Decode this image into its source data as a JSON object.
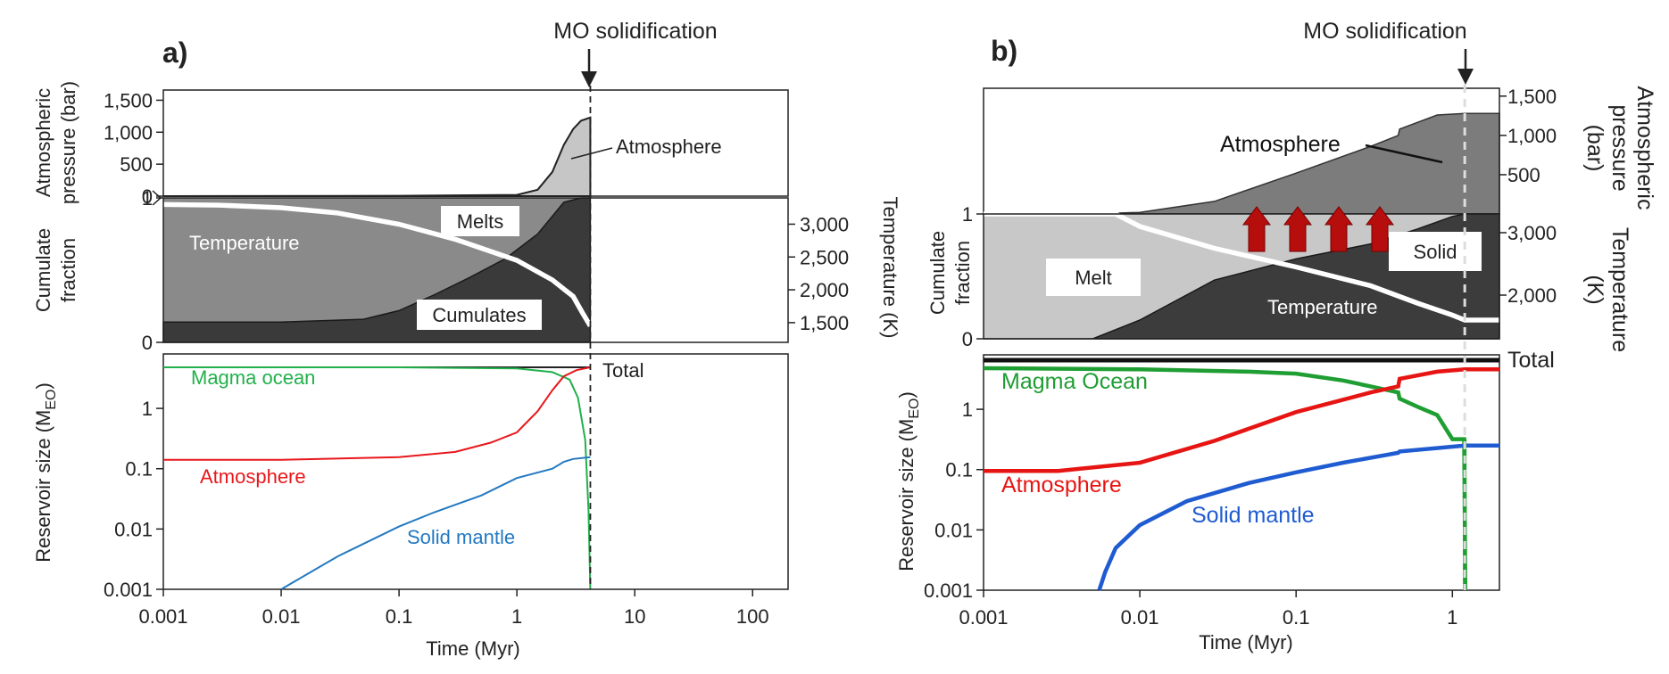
{
  "chart_data": [
    {
      "panel_label": "a)",
      "type": "stacked-line",
      "annotation": "MO solidification",
      "solidification_time_myr": 4.2,
      "xlabel": "Time (Myr)",
      "xscale": "log",
      "xlim": [
        0.001,
        200
      ],
      "xticks": [
        "0.001",
        "0.01",
        "0.1",
        "1",
        "10",
        "100"
      ],
      "pressure": {
        "ylabel_lines": [
          "Atmospheric",
          "pressure (bar)"
        ],
        "ylim": [
          0,
          1600
        ],
        "yticks": [
          "0",
          "500",
          "1,000",
          "1,500"
        ],
        "series": [
          {
            "name": "Atmosphere",
            "x": [
              0.001,
              0.1,
              1,
              1.5,
              2,
              2.5,
              3,
              3.5,
              4.2
            ],
            "y": [
              0,
              5,
              20,
              100,
              380,
              800,
              1050,
              1180,
              1230
            ]
          }
        ]
      },
      "cumulate": {
        "ylabel_lines": [
          "Cumulate",
          "fraction"
        ],
        "ylim": [
          0,
          1
        ],
        "yticks": [
          "0",
          "1"
        ],
        "y2label": "Temperature (K)",
        "y2lim": [
          1200,
          3400
        ],
        "y2ticks": [
          "1,500",
          "2,000",
          "2,500",
          "3,000"
        ],
        "labels": [
          "Melts",
          "Cumulates"
        ],
        "cumulates": {
          "x": [
            0.001,
            0.01,
            0.05,
            0.1,
            0.2,
            0.4,
            0.8,
            1.5,
            2.5,
            3.5,
            4.2
          ],
          "y": [
            0.14,
            0.14,
            0.16,
            0.22,
            0.33,
            0.45,
            0.58,
            0.75,
            0.97,
            1.0,
            1.0
          ]
        },
        "temperature": {
          "name": "Temperature",
          "x": [
            0.001,
            0.003,
            0.01,
            0.03,
            0.1,
            0.3,
            1,
            2,
            3,
            3.6,
            4.2
          ],
          "y": [
            3300,
            3290,
            3250,
            3170,
            3000,
            2770,
            2450,
            2150,
            1900,
            1650,
            1450
          ]
        }
      },
      "reservoir": {
        "ylabel": "Reservoir size (M",
        "ylabel_sub": "EO",
        "ylabel_end": ")",
        "yscale": "log",
        "ylim": [
          0.001,
          8
        ],
        "yticks": [
          "0.001",
          "0.01",
          "0.1",
          "1"
        ],
        "total_label": "Total",
        "series": [
          {
            "name": "Magma ocean",
            "color": "#21b04b",
            "x": [
              0.001,
              0.1,
              1,
              2,
              2.8,
              3.3,
              3.8,
              4.05,
              4.2
            ],
            "y": [
              4.8,
              4.8,
              4.6,
              4.0,
              3.0,
              1.5,
              0.3,
              0.02,
              0.001
            ]
          },
          {
            "name": "Atmosphere",
            "color": "#e8171b",
            "x": [
              0.001,
              0.01,
              0.1,
              0.3,
              0.6,
              1,
              1.5,
              2,
              2.5,
              3.2,
              4.2
            ],
            "y": [
              0.14,
              0.14,
              0.155,
              0.19,
              0.27,
              0.4,
              0.9,
              2.0,
              3.4,
              4.3,
              4.8
            ]
          },
          {
            "name": "Solid mantle",
            "color": "#2379c2",
            "x": [
              0.01,
              0.03,
              0.1,
              0.2,
              0.5,
              1,
              2,
              2.5,
              3,
              4.2
            ],
            "y": [
              0.001,
              0.0035,
              0.011,
              0.019,
              0.036,
              0.07,
              0.1,
              0.13,
              0.145,
              0.155
            ]
          }
        ]
      }
    },
    {
      "panel_label": "b)",
      "type": "stacked-line",
      "annotation": "MO solidification",
      "solidification_time_myr": 1.2,
      "xlabel": "Time (Myr)",
      "xscale": "log",
      "xlim": [
        0.001,
        2
      ],
      "xticks": [
        "0.001",
        "0.01",
        "0.1",
        "1"
      ],
      "pressure": {
        "y2label_lines": [
          "Atmospheric",
          "pressure",
          "(bar)"
        ],
        "ylim": [
          0,
          1600
        ],
        "y2ticks": [
          "500",
          "1,000",
          "1,500"
        ],
        "series": [
          {
            "name": "Atmosphere",
            "x": [
              0.001,
              0.005,
              0.01,
              0.03,
              0.1,
              0.3,
              0.45,
              0.46,
              0.8,
              1.2,
              2
            ],
            "y": [
              0,
              0,
              20,
              160,
              520,
              860,
              1000,
              1080,
              1260,
              1280,
              1280
            ]
          }
        ]
      },
      "cumulate": {
        "ylabel_lines": [
          "Cumulate",
          "fraction"
        ],
        "ylim": [
          0,
          1
        ],
        "yticks": [
          "0",
          "1"
        ],
        "y2label_lines": [
          "Temperature",
          "(K)"
        ],
        "y2lim": [
          1300,
          3300
        ],
        "y2ticks": [
          "2,000",
          "3,000"
        ],
        "labels": [
          "Melt",
          "Solid"
        ],
        "solid": {
          "x": [
            0.001,
            0.005,
            0.01,
            0.03,
            0.1,
            0.3,
            0.6,
            1,
            1.2,
            2
          ],
          "y": [
            0,
            0,
            0.15,
            0.47,
            0.64,
            0.76,
            0.88,
            0.98,
            1.0,
            1.0
          ]
        },
        "temperature": {
          "name": "Temperature",
          "x": [
            0.001,
            0.007,
            0.01,
            0.03,
            0.1,
            0.3,
            0.6,
            1,
            1.2,
            2
          ],
          "y": [
            3300,
            3300,
            3100,
            2750,
            2450,
            2150,
            1870,
            1680,
            1600,
            1600
          ]
        }
      },
      "reservoir": {
        "ylabel": "Reservoir size (M",
        "ylabel_sub": "EO",
        "ylabel_end": ")",
        "yscale": "log",
        "ylim": [
          0.001,
          8
        ],
        "yticks": [
          "0.001",
          "0.01",
          "0.1",
          "1"
        ],
        "total_label": "Total",
        "series": [
          {
            "name": "Magma Ocean",
            "color": "#1f9e33",
            "x": [
              0.001,
              0.01,
              0.05,
              0.1,
              0.2,
              0.3,
              0.45,
              0.46,
              0.6,
              0.8,
              1,
              1.19,
              1.21
            ],
            "y": [
              4.8,
              4.6,
              4.2,
              3.9,
              3.0,
              2.4,
              1.9,
              1.5,
              1.1,
              0.8,
              0.32,
              0.32,
              0.001
            ]
          },
          {
            "name": "Atmosphere",
            "color": "#e61513",
            "x": [
              0.001,
              0.003,
              0.01,
              0.03,
              0.1,
              0.3,
              0.45,
              0.46,
              0.8,
              1.2,
              2
            ],
            "y": [
              0.095,
              0.095,
              0.13,
              0.3,
              0.9,
              1.9,
              2.4,
              3.2,
              4.2,
              4.6,
              4.6
            ]
          },
          {
            "name": "Solid mantle",
            "color": "#1f5bd1",
            "x": [
              0.0055,
              0.006,
              0.007,
              0.01,
              0.02,
              0.05,
              0.1,
              0.2,
              0.45,
              0.46,
              1.2,
              2
            ],
            "y": [
              0.001,
              0.002,
              0.005,
              0.012,
              0.03,
              0.06,
              0.09,
              0.13,
              0.19,
              0.2,
              0.25,
              0.25
            ]
          }
        ]
      }
    }
  ]
}
